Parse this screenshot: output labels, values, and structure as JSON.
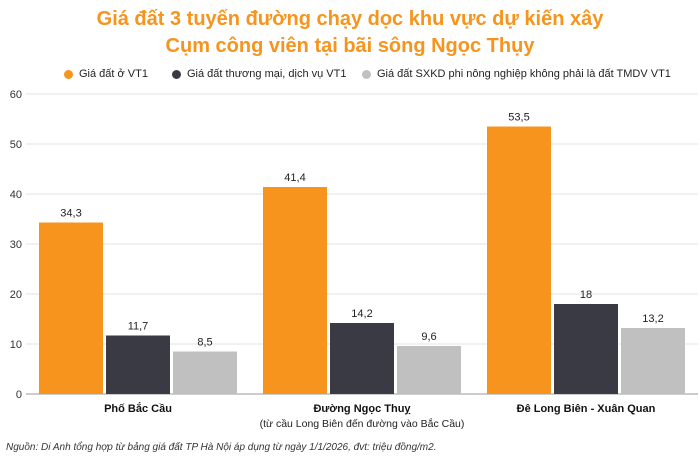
{
  "title_line1": "Giá đất 3 tuyến đường chạy dọc khu vực dự kiến xây",
  "title_line2": "Cụm công viên tại bãi sông Ngọc Thụy",
  "source": "Nguồn: Di Anh tổng hợp từ bảng giá đất TP Hà Nội áp dụng từ ngày 1/1/2026, đvt: triệu đồng/m2.",
  "chart_data": {
    "type": "bar",
    "categories": [
      "Phố Bắc Cầu",
      "Đường Ngọc Thuỵ",
      "Đê Long Biên - Xuân Quan"
    ],
    "category_sublabels": [
      "",
      "(từ cầu Long Biên đến đường vào Bắc Cầu)",
      ""
    ],
    "series": [
      {
        "name": "Giá đất ở VT1",
        "color": "#f7941d",
        "values": [
          34.3,
          41.4,
          53.5
        ],
        "labels": [
          "34,3",
          "41,4",
          "53,5"
        ]
      },
      {
        "name": "Giá đất thương mại, dịch vụ VT1",
        "color": "#3a3a44",
        "values": [
          11.7,
          14.2,
          18
        ],
        "labels": [
          "11,7",
          "14,2",
          "18"
        ]
      },
      {
        "name": "Giá đất SXKD phi nông nghiệp không phải là đất TMDV VT1",
        "color": "#c0c0c0",
        "values": [
          8.5,
          9.6,
          13.2
        ],
        "labels": [
          "8,5",
          "9,6",
          "13,2"
        ]
      }
    ],
    "ylim": [
      0,
      60
    ],
    "yticks": [
      0,
      10,
      20,
      30,
      40,
      50,
      60
    ],
    "grid": true,
    "legend_position": "top"
  }
}
